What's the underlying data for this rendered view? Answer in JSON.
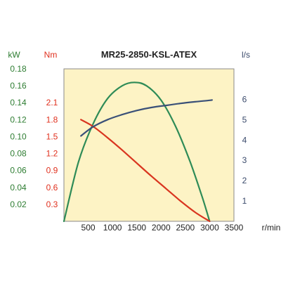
{
  "chart_data": {
    "type": "line",
    "title": "MR25-2850-KSL-ATEX",
    "xlabel": "r/min",
    "xlim": [
      0,
      3500
    ],
    "x_ticks": [
      "500",
      "1000",
      "1500",
      "2000",
      "2500",
      "3000",
      "3500"
    ],
    "axes": {
      "power": {
        "unit": "kW",
        "color": "#2e7d32",
        "range": [
          0,
          0.18
        ],
        "ticks": [
          "0.02",
          "0.04",
          "0.06",
          "0.08",
          "0.10",
          "0.12",
          "0.14",
          "0.16",
          "0.18"
        ]
      },
      "torque": {
        "unit": "Nm",
        "color": "#e0301e",
        "range": [
          0,
          2.7
        ],
        "ticks": [
          "0.3",
          "0.6",
          "0.9",
          "1.2",
          "1.5",
          "1.8",
          "2.1"
        ]
      },
      "flow": {
        "unit": "l/s",
        "color": "#3a4a6b",
        "range": [
          0,
          7.5
        ],
        "ticks": [
          "1",
          "2",
          "3",
          "4",
          "5",
          "6"
        ]
      }
    },
    "series": [
      {
        "axis": "power",
        "color": "#2e8b57",
        "x": [
          0,
          300,
          600,
          900,
          1200,
          1450,
          1700,
          2000,
          2300,
          2600,
          2850,
          3000
        ],
        "y": [
          0,
          0.07,
          0.115,
          0.145,
          0.16,
          0.164,
          0.16,
          0.143,
          0.112,
          0.07,
          0.028,
          0
        ]
      },
      {
        "axis": "torque",
        "color": "#d9351f",
        "x": [
          350,
          600,
          900,
          1200,
          1500,
          1800,
          2100,
          2400,
          2700,
          3000
        ],
        "y": [
          1.8,
          1.68,
          1.48,
          1.26,
          1.03,
          0.8,
          0.58,
          0.36,
          0.16,
          0
        ]
      },
      {
        "axis": "flow",
        "color": "#3a5078",
        "x": [
          350,
          600,
          900,
          1200,
          1500,
          1800,
          2100,
          2400,
          2700,
          3000,
          3050
        ],
        "y": [
          4.2,
          4.65,
          5.0,
          5.25,
          5.45,
          5.6,
          5.7,
          5.8,
          5.88,
          5.95,
          5.97
        ]
      }
    ]
  }
}
